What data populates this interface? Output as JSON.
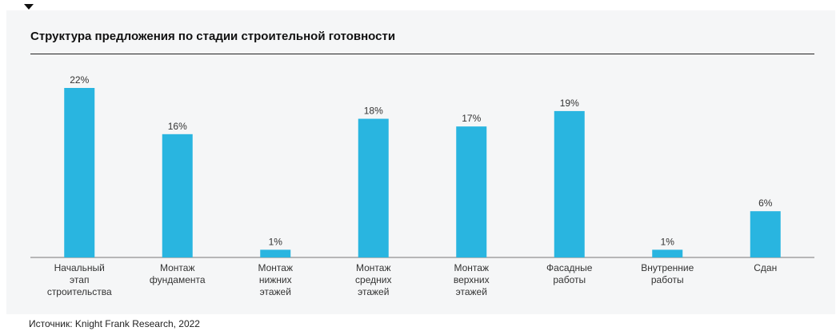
{
  "title": "Структура предложения по стадии строительной готовности",
  "source": "Источник: Knight Frank Research, 2022",
  "colors": {
    "bar": "#29b5e0",
    "axis": "#777777",
    "text": "#333333",
    "panel": "#f5f6f7"
  },
  "chart_data": {
    "type": "bar",
    "title": "Структура предложения по стадии строительной готовности",
    "categories": [
      [
        "Начальный",
        "этап",
        "строительства"
      ],
      [
        "Монтаж",
        "фундамента"
      ],
      [
        "Монтаж",
        "нижних",
        "этажей"
      ],
      [
        "Монтаж",
        "средних",
        "этажей"
      ],
      [
        "Монтаж",
        "верхних",
        "этажей"
      ],
      [
        "Фасадные",
        "работы"
      ],
      [
        "Внутренние",
        "работы"
      ],
      [
        "Сдан"
      ]
    ],
    "values": [
      22,
      16,
      1,
      18,
      17,
      19,
      1,
      6
    ],
    "data_labels": [
      "22%",
      "16%",
      "1%",
      "18%",
      "17%",
      "19%",
      "1%",
      "6%"
    ],
    "unit": "%",
    "ylim": [
      0,
      22
    ],
    "grid": false,
    "legend": "none"
  }
}
